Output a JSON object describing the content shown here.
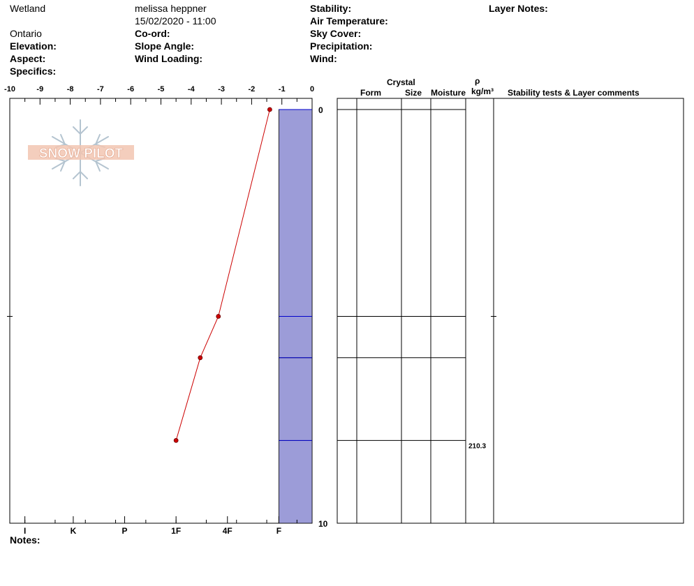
{
  "header": {
    "location": "Wetland",
    "observer": "melissa heppner",
    "datetime": "15/02/2020 - 11:00",
    "region": "Ontario",
    "elevation_label": "Elevation:",
    "aspect_label": "Aspect:",
    "specifics_label": "Specifics:",
    "coord_label": "Co-ord:",
    "slope_label": "Slope Angle:",
    "wind_loading_label": "Wind Loading:",
    "stability_label": "Stability:",
    "air_temp_label": "Air Temperature:",
    "sky_cover_label": "Sky Cover:",
    "precip_label": "Precipitation:",
    "wind_label": "Wind:",
    "layer_notes_label": "Layer Notes:"
  },
  "logo": {
    "text": "SNOW PILOT"
  },
  "notes_label": "Notes:",
  "table": {
    "crystal_label": "Crystal",
    "form_label": "Form",
    "size_label": "Size",
    "moisture_label": "Moisture",
    "rho_label": "ρ",
    "density_unit_label": "kg/m³",
    "comments_label": "Stability tests & Layer comments",
    "density_values": [
      {
        "depth": 8.0,
        "value": "210.3"
      }
    ]
  },
  "colors": {
    "temp_line": "#cc0000",
    "hardness_fill": "#9c9cd8",
    "layer_line": "#0000cc"
  },
  "chart_data": {
    "type": "line",
    "title": "",
    "temperature_axis": {
      "ticks": [
        -10,
        -9,
        -8,
        -7,
        -6,
        -5,
        -4,
        -3,
        -2,
        -1,
        0
      ],
      "tick_labels": [
        "-10",
        "-9",
        "-8",
        "-7",
        "-6",
        "-5",
        "-4",
        "-3",
        "-2",
        "-1",
        "0"
      ],
      "range": [
        -10,
        0
      ]
    },
    "depth_axis": {
      "range": [
        0,
        10
      ],
      "labeled_ticks": [
        0,
        10
      ],
      "tick_labels": [
        "0",
        "10"
      ],
      "minor_ticks": [
        5
      ]
    },
    "hardness_axis": {
      "labels": [
        "I",
        "K",
        "P",
        "1F",
        "4F",
        "F"
      ],
      "label_positions": [
        -9.5,
        -7.9,
        -6.2,
        -4.5,
        -2.8,
        -1.1
      ]
    },
    "temperature_profile": {
      "series": [
        {
          "points": [
            {
              "temp": -1.4,
              "depth": 0.0
            },
            {
              "temp": -3.1,
              "depth": 5.0
            },
            {
              "temp": -3.7,
              "depth": 6.0
            },
            {
              "temp": -4.5,
              "depth": 8.0
            }
          ]
        }
      ]
    },
    "layers": [
      {
        "top": 0.0,
        "bottom": 5.0,
        "hardness": "F"
      },
      {
        "top": 5.0,
        "bottom": 6.0,
        "hardness": "F"
      },
      {
        "top": 6.0,
        "bottom": 8.0,
        "hardness": "F"
      },
      {
        "top": 8.0,
        "bottom": 10.0,
        "hardness": "F"
      }
    ]
  }
}
